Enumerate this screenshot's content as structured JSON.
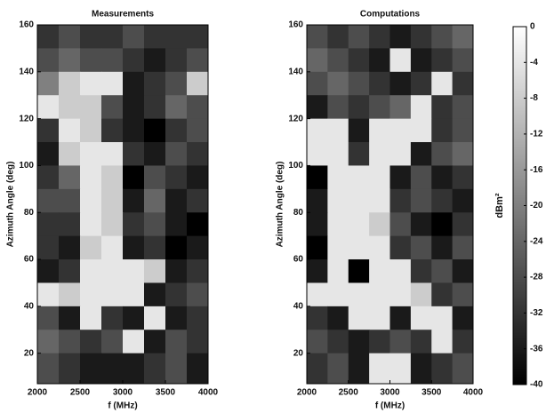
{
  "chart_data": [
    {
      "type": "heatmap",
      "title": "Measurements",
      "x_label": "f (MHz)",
      "y_label": "Azimuth Angle (deg)",
      "x": [
        2125,
        2375,
        2625,
        2875,
        3125,
        3375,
        3625,
        3875
      ],
      "y": [
        155,
        145,
        135,
        125,
        115,
        105,
        95,
        85,
        75,
        65,
        55,
        45,
        35,
        25,
        15
      ],
      "z": [
        [
          -32,
          -28,
          -32,
          -32,
          -28,
          -32,
          -32,
          -32
        ],
        [
          -28,
          -24,
          -28,
          -28,
          -32,
          -36,
          -32,
          -28
        ],
        [
          -20,
          -8,
          -4,
          -4,
          -36,
          -32,
          -28,
          -8
        ],
        [
          -4,
          -8,
          -8,
          -28,
          -36,
          -32,
          -24,
          -28
        ],
        [
          -32,
          -4,
          -8,
          -32,
          -36,
          -40,
          -32,
          -28
        ],
        [
          -36,
          -8,
          -4,
          -4,
          -32,
          -36,
          -28,
          -32
        ],
        [
          -32,
          -24,
          -4,
          -8,
          -40,
          -28,
          -32,
          -36
        ],
        [
          -28,
          -28,
          -4,
          -8,
          -36,
          -24,
          -36,
          -32
        ],
        [
          -32,
          -32,
          -4,
          -8,
          -32,
          -28,
          -36,
          -40
        ],
        [
          -32,
          -36,
          -8,
          -4,
          -36,
          -32,
          -40,
          -36
        ],
        [
          -36,
          -32,
          -4,
          -4,
          -4,
          -8,
          -36,
          -32
        ],
        [
          -4,
          -8,
          -4,
          -4,
          -4,
          -36,
          -32,
          -28
        ],
        [
          -28,
          -36,
          -4,
          -32,
          -36,
          -4,
          -36,
          -32
        ],
        [
          -24,
          -28,
          -32,
          -28,
          -4,
          -36,
          -28,
          -32
        ],
        [
          -28,
          -32,
          -36,
          -36,
          -36,
          -32,
          -28,
          -36
        ]
      ],
      "xlim": [
        2000,
        4000
      ],
      "ylim": [
        7,
        160
      ],
      "xticks": [
        2000,
        2500,
        3000,
        3500,
        4000
      ],
      "yticks": [
        20,
        40,
        60,
        80,
        100,
        120,
        140,
        160
      ],
      "clim": [
        -40,
        0
      ]
    },
    {
      "type": "heatmap",
      "title": "Computations",
      "x_label": "f (MHz)",
      "y_label": "Azimuth Angle (deg)",
      "x": [
        2125,
        2375,
        2625,
        2875,
        3125,
        3375,
        3625,
        3875
      ],
      "y": [
        155,
        145,
        135,
        125,
        115,
        105,
        95,
        85,
        75,
        65,
        55,
        45,
        35,
        25,
        15
      ],
      "z": [
        [
          -28,
          -32,
          -28,
          -32,
          -36,
          -32,
          -28,
          -24
        ],
        [
          -24,
          -28,
          -32,
          -36,
          -4,
          -36,
          -32,
          -28
        ],
        [
          -28,
          -24,
          -28,
          -32,
          -36,
          -32,
          -4,
          -32
        ],
        [
          -36,
          -28,
          -32,
          -28,
          -24,
          -4,
          -32,
          -28
        ],
        [
          -4,
          -4,
          -36,
          -4,
          -4,
          -4,
          -32,
          -28
        ],
        [
          -4,
          -4,
          -32,
          -4,
          -4,
          -36,
          -28,
          -24
        ],
        [
          -40,
          -4,
          -4,
          -4,
          -36,
          -28,
          -36,
          -32
        ],
        [
          -36,
          -4,
          -4,
          -4,
          -32,
          -28,
          -32,
          -36
        ],
        [
          -36,
          -4,
          -4,
          -8,
          -28,
          -36,
          -40,
          -32
        ],
        [
          -40,
          -4,
          -4,
          -4,
          -32,
          -28,
          -36,
          -28
        ],
        [
          -36,
          -4,
          -40,
          -4,
          -4,
          -32,
          -28,
          -36
        ],
        [
          -4,
          -4,
          -4,
          -4,
          -4,
          -8,
          -32,
          -28
        ],
        [
          -32,
          -36,
          -4,
          -4,
          -36,
          -4,
          -4,
          -36
        ],
        [
          -28,
          -32,
          -36,
          -32,
          -28,
          -32,
          -4,
          -32
        ],
        [
          -32,
          -28,
          -36,
          -4,
          -4,
          -36,
          -32,
          -28
        ]
      ],
      "xlim": [
        2000,
        4000
      ],
      "ylim": [
        7,
        160
      ],
      "xticks": [
        2000,
        2500,
        3000,
        3500,
        4000
      ],
      "yticks": [
        20,
        40,
        60,
        80,
        100,
        120,
        140,
        160
      ],
      "clim": [
        -40,
        0
      ],
      "colorbar": {
        "label": "dBm²",
        "ticks": [
          0,
          -4,
          -8,
          -12,
          -16,
          -20,
          -24,
          -28,
          -32,
          -36,
          -40
        ]
      }
    }
  ]
}
